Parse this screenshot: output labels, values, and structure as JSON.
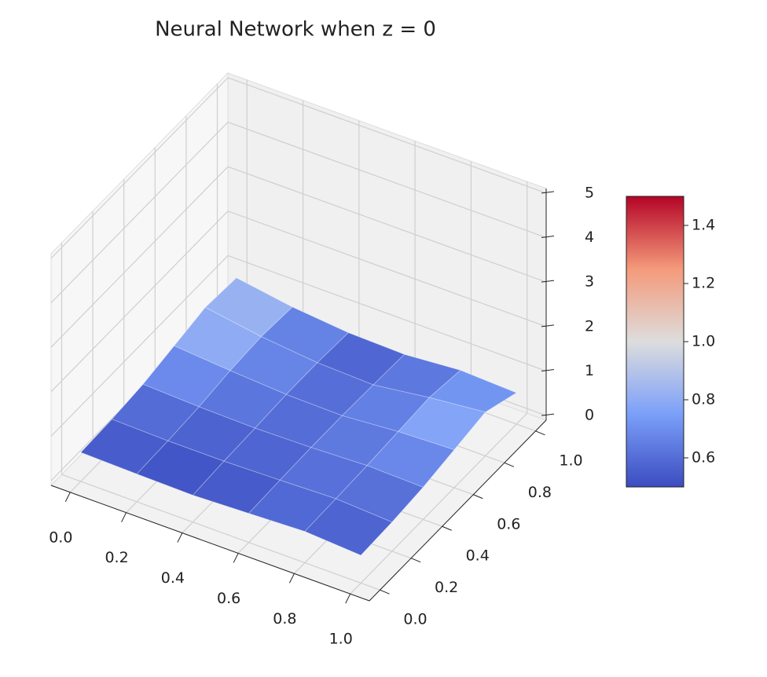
{
  "chart_data": {
    "type": "surface3d",
    "title": "Neural Network when z = 0",
    "x": [
      0,
      0.2,
      0.4,
      0.6,
      0.8,
      1
    ],
    "y": [
      0,
      0.2,
      0.4,
      0.6,
      0.8,
      1
    ],
    "z": [
      [
        0.55,
        0.52,
        0.5,
        0.55,
        0.6,
        0.52
      ],
      [
        0.58,
        0.55,
        0.55,
        0.58,
        0.62,
        0.55
      ],
      [
        0.65,
        0.6,
        0.58,
        0.6,
        0.65,
        0.62
      ],
      [
        0.8,
        0.7,
        0.62,
        0.6,
        0.7,
        0.75
      ],
      [
        0.95,
        0.75,
        0.62,
        0.58,
        0.75,
        0.88
      ],
      [
        0.9,
        0.7,
        0.58,
        0.55,
        0.65,
        0.6
      ]
    ],
    "xlim": [
      0,
      1
    ],
    "ylim": [
      0,
      1
    ],
    "zlim": [
      0,
      5
    ],
    "xticks": [
      {
        "value": 0,
        "label": "0.0"
      },
      0.2,
      0.4,
      0.6,
      0.8,
      {
        "value": 1,
        "label": "1.0"
      }
    ],
    "yticks": [
      {
        "value": 0,
        "label": "0.0"
      },
      0.2,
      0.4,
      0.6,
      0.8,
      {
        "value": 1,
        "label": "1.0"
      }
    ],
    "zticks": [
      0,
      1,
      2,
      3,
      4,
      5
    ],
    "colorbar": {
      "clim": [
        0.5,
        1.5
      ],
      "ticks": [
        0.6,
        0.8,
        {
          "value": 1,
          "label": "1.0"
        },
        1.2,
        1.4
      ]
    },
    "colormap": [
      "#3b4cc0",
      "#7b9ff9",
      "#dddddd",
      "#f49a7b",
      "#b40426"
    ],
    "grid": true
  }
}
